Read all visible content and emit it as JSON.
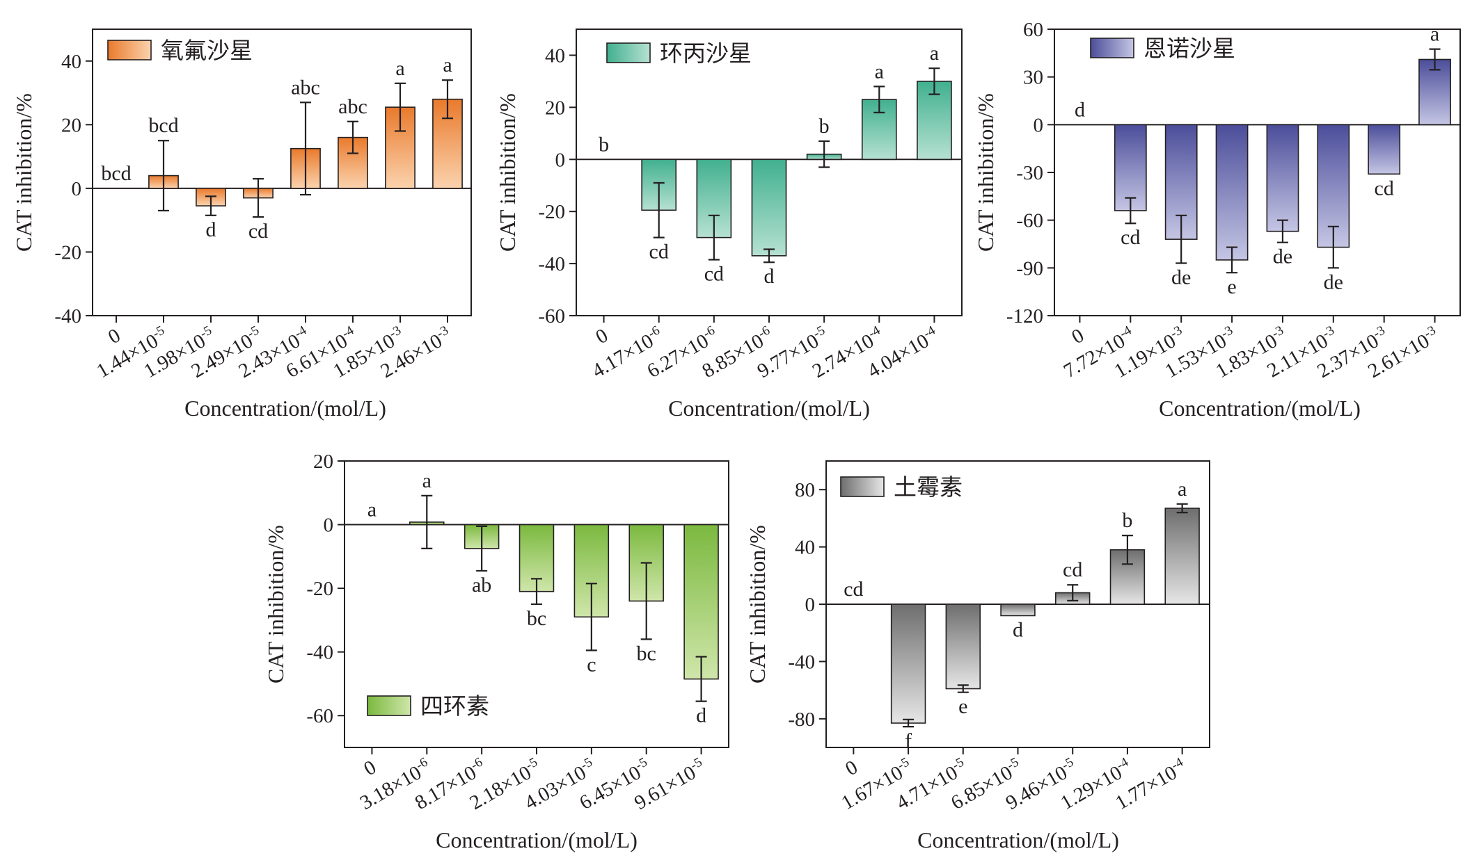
{
  "chart_data": [
    {
      "type": "bar",
      "legend": "氧氟沙星",
      "color_top": "#e97a2c",
      "color_bottom": "#fbd3ae",
      "ylabel": "CAT inhibition/%",
      "xlabel": "Concentration/(mol/L)",
      "ylim": [
        -40,
        50
      ],
      "yticks": [
        40,
        20,
        0,
        -20,
        -40
      ],
      "categories": [
        "0",
        "1.44×10-5",
        "1.98×10-5",
        "2.49×10-5",
        "2.43×10-4",
        "6.61×10-4",
        "1.85×10-3",
        "2.46×10-3"
      ],
      "values": [
        0,
        4,
        -5.5,
        -3,
        12.5,
        16,
        25.5,
        28
      ],
      "errors": [
        0,
        11,
        3,
        6,
        14.5,
        5,
        7.5,
        6
      ],
      "significance": [
        "bcd",
        "bcd",
        "d",
        "cd",
        "abc",
        "abc",
        "a",
        "a"
      ]
    },
    {
      "type": "bar",
      "legend": "环丙沙星",
      "color_top": "#41b08e",
      "color_bottom": "#b6e1d2",
      "ylabel": "CAT inhibition/%",
      "xlabel": "Concentration/(mol/L)",
      "ylim": [
        -60,
        50
      ],
      "yticks": [
        40,
        20,
        0,
        -20,
        -40,
        -60
      ],
      "categories": [
        "0",
        "4.17×10-6",
        "6.27×10-6",
        "8.85×10-6",
        "9.77×10-5",
        "2.74×10-4",
        "4.04×10-4"
      ],
      "values": [
        0,
        -19.5,
        -30,
        -37,
        2,
        23,
        30
      ],
      "errors": [
        0,
        10.5,
        8.5,
        2.5,
        5,
        5,
        5
      ],
      "significance": [
        "b",
        "cd",
        "cd",
        "d",
        "b",
        "a",
        "a"
      ]
    },
    {
      "type": "bar",
      "legend": "恩诺沙星",
      "color_top": "#4b4d9a",
      "color_bottom": "#c5c6e4",
      "ylabel": "CAT inhibition/%",
      "xlabel": "Concentration/(mol/L)",
      "ylim": [
        -120,
        60
      ],
      "yticks": [
        60,
        30,
        0,
        -30,
        -60,
        -90,
        -120
      ],
      "categories": [
        "0",
        "7.72×10-4",
        "1.19×10-3",
        "1.53×10-3",
        "1.83×10-3",
        "2.11×10-3",
        "2.37×10-3",
        "2.61×10-3"
      ],
      "values": [
        0,
        -54,
        -72,
        -85,
        -67,
        -77,
        -31,
        41
      ],
      "errors": [
        0,
        8,
        15,
        8,
        7,
        13,
        0,
        6.5
      ],
      "significance": [
        "d",
        "cd",
        "de",
        "e",
        "de",
        "de",
        "cd",
        "a"
      ]
    },
    {
      "type": "bar",
      "legend": "四环素",
      "color_top": "#7bb93f",
      "color_bottom": "#cfe6aa",
      "ylabel": "CAT inhibition/%",
      "xlabel": "Concentration/(mol/L)",
      "ylim": [
        -70,
        20
      ],
      "yticks": [
        20,
        0,
        -20,
        -40,
        -60
      ],
      "categories": [
        "0",
        "3.18×10-6",
        "8.17×10-6",
        "2.18×10-5",
        "4.03×10-5",
        "6.45×10-5",
        "9.61×10-5"
      ],
      "values": [
        0,
        0.8,
        -7.5,
        -21,
        -29,
        -24,
        -48.5
      ],
      "errors": [
        0,
        8.3,
        7,
        4,
        10.5,
        12,
        7
      ],
      "significance": [
        "a",
        "a",
        "ab",
        "bc",
        "c",
        "bc",
        "d"
      ]
    },
    {
      "type": "bar",
      "legend": "土霉素",
      "color_top": "#6e6e6e",
      "color_bottom": "#e6e6e6",
      "ylabel": "CAT inhibition/%",
      "xlabel": "Concentration/(mol/L)",
      "ylim": [
        -100,
        100
      ],
      "yticks": [
        80,
        40,
        0,
        -40,
        -80
      ],
      "categories": [
        "0",
        "1.67×10-5",
        "4.71×10-5",
        "6.85×10-5",
        "9.46×10-5",
        "1.29×10-4",
        "1.77×10-4"
      ],
      "values": [
        0,
        -83,
        -59,
        -8,
        8,
        38,
        67
      ],
      "errors": [
        0,
        2.5,
        2.5,
        0,
        5.5,
        10,
        3
      ],
      "significance": [
        "cd",
        "f",
        "e",
        "d",
        "cd",
        "b",
        "a"
      ]
    }
  ]
}
